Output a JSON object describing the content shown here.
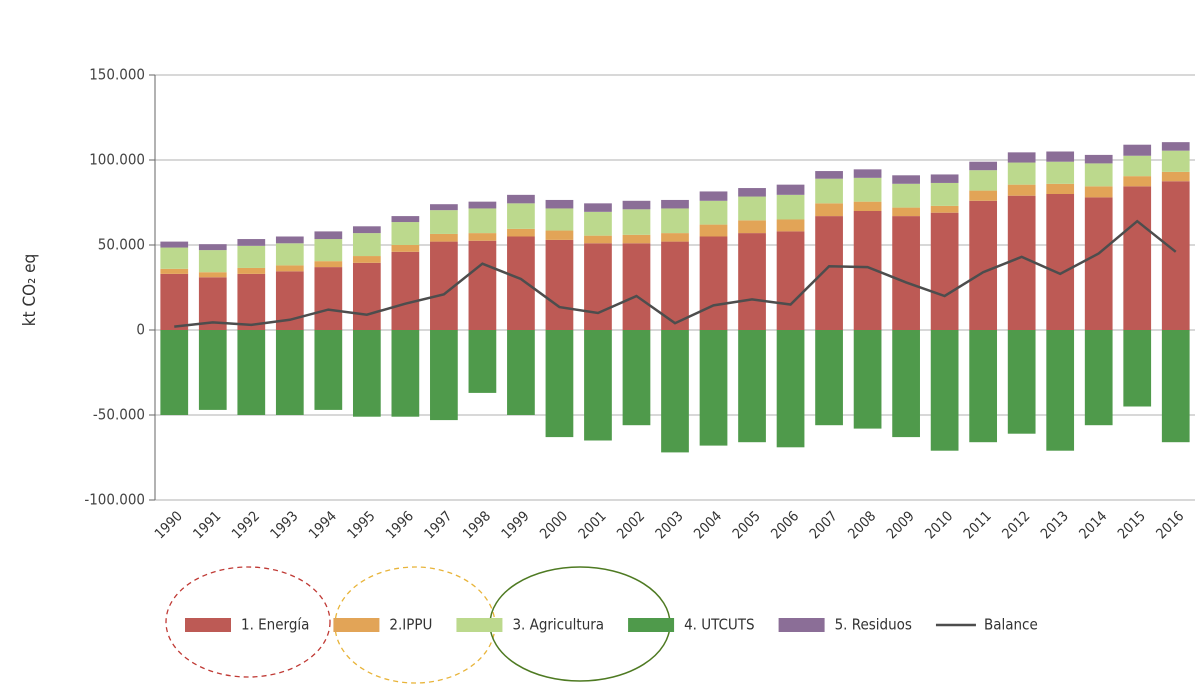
{
  "chart_data": {
    "type": "bar",
    "y_label": "kt CO₂ eq",
    "categories": [
      "1990",
      "1991",
      "1992",
      "1993",
      "1994",
      "1995",
      "1996",
      "1997",
      "1998",
      "1999",
      "2000",
      "2001",
      "2002",
      "2003",
      "2004",
      "2005",
      "2006",
      "2007",
      "2008",
      "2009",
      "2010",
      "2011",
      "2012",
      "2013",
      "2014",
      "2015",
      "2016"
    ],
    "series": [
      {
        "name": "1. Energía",
        "color": "#bd5a55",
        "values": [
          33000,
          31000,
          33000,
          34500,
          37000,
          39500,
          46000,
          52000,
          52500,
          55000,
          53000,
          51000,
          51000,
          52000,
          55000,
          57000,
          58000,
          67000,
          70000,
          67000,
          69000,
          76000,
          79000,
          80000,
          78000,
          84500,
          87500
        ]
      },
      {
        "name": "2.IPPU",
        "color": "#e2a457",
        "values": [
          3000,
          3000,
          3500,
          3500,
          3500,
          4000,
          4000,
          4500,
          4500,
          4500,
          5500,
          4500,
          5000,
          5000,
          7000,
          7500,
          7000,
          7500,
          5500,
          5000,
          4000,
          6000,
          6500,
          6000,
          6500,
          6000,
          5500
        ]
      },
      {
        "name": "3. Agricultura",
        "color": "#bcd98d",
        "values": [
          12500,
          13000,
          13000,
          13000,
          13000,
          13500,
          13500,
          14000,
          14500,
          15000,
          13000,
          14000,
          15000,
          14500,
          14000,
          14000,
          14500,
          14500,
          14000,
          14000,
          13500,
          12000,
          13000,
          13000,
          13500,
          12000,
          12500
        ]
      },
      {
        "name": "4. UTCUTS",
        "color": "#4f9a4b",
        "values": [
          -50000,
          -47000,
          -50000,
          -50000,
          -47000,
          -51000,
          -51000,
          -53000,
          -37000,
          -50000,
          -63000,
          -65000,
          -56000,
          -72000,
          -68000,
          -66000,
          -69000,
          -56000,
          -58000,
          -63000,
          -71000,
          -66000,
          -61000,
          -71000,
          -56000,
          -45000,
          -66000
        ]
      },
      {
        "name": "5. Residuos",
        "color": "#8b6e97",
        "values": [
          3500,
          3500,
          4000,
          4000,
          4500,
          4000,
          3500,
          3500,
          4000,
          5000,
          5000,
          5000,
          5000,
          5000,
          5500,
          5000,
          6000,
          4500,
          5000,
          5000,
          5000,
          5000,
          6000,
          6000,
          5000,
          6500,
          5000
        ]
      },
      {
        "name": "Balance",
        "type": "line",
        "color": "#4d4d4d",
        "values": [
          2000,
          4500,
          3000,
          6000,
          12000,
          9000,
          15500,
          21000,
          39000,
          30000,
          13500,
          10000,
          20000,
          4000,
          14500,
          18000,
          15000,
          37500,
          37000,
          28000,
          20000,
          34000,
          43000,
          33000,
          45000,
          64000,
          46000
        ]
      }
    ],
    "ylim": [
      -100000,
      150000
    ],
    "yticks": [
      {
        "value": -100000,
        "label": "-100.000"
      },
      {
        "value": -50000,
        "label": "-50.000"
      },
      0,
      {
        "value": 50000,
        "label": "50.000"
      },
      {
        "value": 100000,
        "label": "100.000"
      },
      {
        "value": 150000,
        "label": "150.000"
      }
    ],
    "grid": true
  }
}
